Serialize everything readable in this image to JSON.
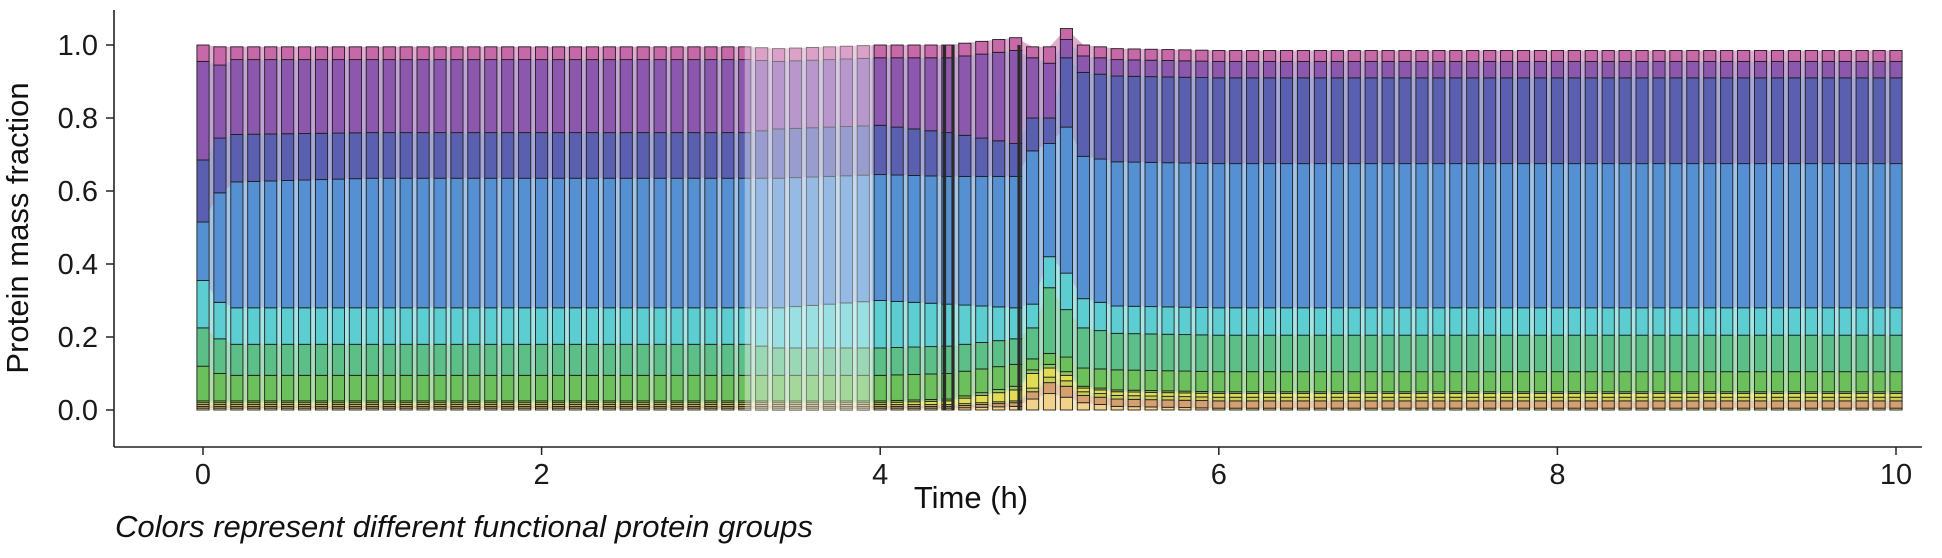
{
  "chart_data": {
    "type": "area",
    "subtype": "stacked",
    "xlabel": "Time (h)",
    "ylabel": "Protein mass fraction",
    "xlim": [
      -0.5,
      10.1
    ],
    "ylim": [
      -0.1,
      1.1
    ],
    "xticks": [
      "0",
      "2",
      "4",
      "6",
      "8",
      "10"
    ],
    "yticks": [
      "0.0",
      "0.2",
      "0.4",
      "0.6",
      "0.8",
      "1.0"
    ],
    "grid": false,
    "legend": "none",
    "bar_period_h": 0.1,
    "highlight_bands_h": [
      [
        3.2,
        3.95
      ]
    ],
    "dark_marker_lines_h": [
      4.38,
      4.43,
      4.82
    ],
    "x": [
      0,
      0.1,
      0.2,
      1.0,
      3.2,
      3.4,
      4.0,
      4.4,
      4.8,
      4.9,
      5.0,
      5.1,
      5.2,
      5.4,
      6.0,
      10.0
    ],
    "series": [
      {
        "color": "#f0d28a",
        "values": [
          0.005,
          0.005,
          0.005,
          0.005,
          0.005,
          0.005,
          0.005,
          0.005,
          0.01,
          0.03,
          0.045,
          0.035,
          0.02,
          0.01,
          0.005,
          0.005
        ]
      },
      {
        "color": "#d4a070",
        "values": [
          0.005,
          0.005,
          0.005,
          0.005,
          0.005,
          0.005,
          0.005,
          0.005,
          0.01,
          0.02,
          0.03,
          0.03,
          0.02,
          0.02,
          0.02,
          0.02
        ]
      },
      {
        "color": "#c8cf55",
        "values": [
          0.005,
          0.005,
          0.005,
          0.005,
          0.005,
          0.005,
          0.005,
          0.005,
          0.005,
          0.01,
          0.015,
          0.015,
          0.01,
          0.01,
          0.01,
          0.01
        ]
      },
      {
        "color": "#e0dc55",
        "values": [
          0.005,
          0.005,
          0.005,
          0.005,
          0.005,
          0.005,
          0.005,
          0.01,
          0.03,
          0.04,
          0.025,
          0.015,
          0.01,
          0.01,
          0.01,
          0.01
        ]
      },
      {
        "color": "#8fc95f",
        "values": [
          0.005,
          0.005,
          0.005,
          0.005,
          0.005,
          0.005,
          0.005,
          0.005,
          0.01,
          0.01,
          0.01,
          0.01,
          0.005,
          0.005,
          0.005,
          0.005
        ]
      },
      {
        "color": "#6cc05c",
        "values": [
          0.095,
          0.075,
          0.07,
          0.07,
          0.07,
          0.07,
          0.07,
          0.07,
          0.06,
          0.03,
          0.03,
          0.04,
          0.05,
          0.055,
          0.055,
          0.055
        ]
      },
      {
        "color": "#5cbf88",
        "values": [
          0.105,
          0.095,
          0.085,
          0.085,
          0.085,
          0.075,
          0.075,
          0.075,
          0.07,
          0.085,
          0.18,
          0.13,
          0.11,
          0.1,
          0.1,
          0.1
        ]
      },
      {
        "color": "#5ccdd0",
        "values": [
          0.13,
          0.1,
          0.1,
          0.1,
          0.1,
          0.11,
          0.13,
          0.115,
          0.085,
          0.065,
          0.085,
          0.1,
          0.08,
          0.075,
          0.075,
          0.075
        ]
      },
      {
        "color": "#5590d2",
        "values": [
          0.16,
          0.3,
          0.345,
          0.355,
          0.355,
          0.355,
          0.345,
          0.35,
          0.36,
          0.42,
          0.31,
          0.4,
          0.39,
          0.395,
          0.395,
          0.395
        ]
      },
      {
        "color": "#5a5fb0",
        "values": [
          0.17,
          0.15,
          0.13,
          0.125,
          0.125,
          0.135,
          0.135,
          0.12,
          0.09,
          0.09,
          0.07,
          0.19,
          0.23,
          0.235,
          0.235,
          0.235
        ]
      },
      {
        "color": "#8b58ad",
        "values": [
          0.27,
          0.2,
          0.205,
          0.2,
          0.2,
          0.185,
          0.185,
          0.205,
          0.255,
          0.165,
          0.15,
          0.05,
          0.045,
          0.045,
          0.045,
          0.045
        ]
      },
      {
        "color": "#c768a8",
        "values": [
          0.045,
          0.05,
          0.035,
          0.035,
          0.035,
          0.035,
          0.035,
          0.035,
          0.035,
          0.03,
          0.045,
          0.03,
          0.03,
          0.03,
          0.03,
          0.03
        ]
      }
    ]
  },
  "caption": "Colors represent different functional protein groups"
}
